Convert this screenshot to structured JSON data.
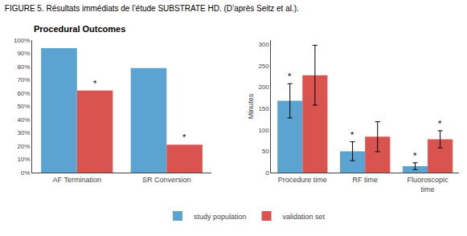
{
  "chart_data": [
    {
      "type": "bar",
      "title": "FIGURE 5. Résultats immédiats de l’étude SUBSTRATE HD. (D’après Seitz et al.).",
      "subtitle": "Procedural Outcomes",
      "categories": [
        "AF Termination",
        "SR Conversion"
      ],
      "series": [
        {
          "name": "study population",
          "color": "#5ba3d0",
          "values": [
            0.94,
            0.79
          ]
        },
        {
          "name": "validation set",
          "color": "#d9534f",
          "values": [
            0.62,
            0.21
          ]
        }
      ],
      "ylim": [
        0,
        1.0
      ],
      "yticks": [
        {
          "value": 0.0,
          "label": "0%"
        },
        {
          "value": 0.1,
          "label": "10%"
        },
        {
          "value": 0.2,
          "label": "20%"
        },
        {
          "value": 0.3,
          "label": "30%"
        },
        {
          "value": 0.4,
          "label": "40%"
        },
        {
          "value": 0.5,
          "label": "50%"
        },
        {
          "value": 0.6,
          "label": "60%"
        },
        {
          "value": 0.7,
          "label": "70%"
        },
        {
          "value": 0.8,
          "label": "80%"
        },
        {
          "value": 0.9,
          "label": "90%"
        },
        {
          "value": 1.0,
          "label": "100%"
        }
      ],
      "annotations": [
        {
          "text": "*",
          "category": "AF Termination",
          "series": "validation set"
        },
        {
          "text": "*",
          "category": "SR Conversion",
          "series": "validation set"
        }
      ],
      "grid": false,
      "legend": "bottom"
    },
    {
      "type": "bar",
      "y_label": "Minutes",
      "categories": [
        "Procedure time",
        "RF time",
        "Fluoroscopic\ntime"
      ],
      "series": [
        {
          "name": "study population",
          "color": "#5ba3d0",
          "values": [
            168,
            50,
            15
          ],
          "errors": [
            40,
            22,
            8
          ]
        },
        {
          "name": "validation set",
          "color": "#d9534f",
          "values": [
            228,
            84,
            78
          ],
          "errors": [
            70,
            35,
            20
          ]
        }
      ],
      "ylim": [
        0,
        310
      ],
      "yticks": [
        0,
        50,
        100,
        150,
        200,
        250,
        300
      ],
      "annotations": [
        {
          "text": "*",
          "category": "Procedure time",
          "series": "study population"
        },
        {
          "text": "*",
          "category": "RF time",
          "series": "study population"
        },
        {
          "text": "*",
          "category": "Fluoroscopic\ntime",
          "series": "study population"
        },
        {
          "text": "*",
          "category": "Fluoroscopic\ntime",
          "series": "validation set"
        }
      ],
      "grid": false
    }
  ]
}
